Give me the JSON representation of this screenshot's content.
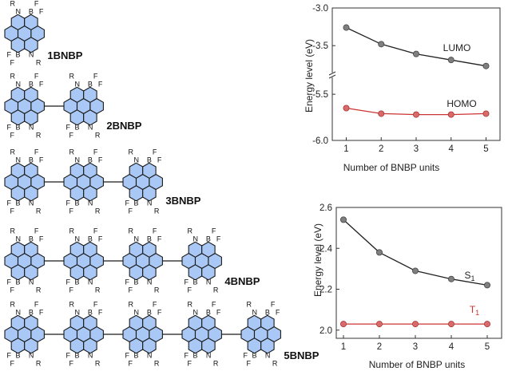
{
  "molecules": [
    {
      "label": "1BNBP",
      "units": 1
    },
    {
      "label": "2BNBP",
      "units": 2
    },
    {
      "label": "3BNBP",
      "units": 3
    },
    {
      "label": "4BNBP",
      "units": 4
    },
    {
      "label": "5BNBP",
      "units": 5
    }
  ],
  "atom_labels": {
    "nitrogen": "N",
    "boron": "B",
    "fluorine": "F",
    "substituent": "R"
  },
  "colors": {
    "ring_fill": "#a9c8f5",
    "bond": "#1a1a1a",
    "homo_line": "#cc3333",
    "homo_marker": "#d86a6a",
    "gray_marker": "#7f7f7f",
    "t1_line": "#cc3333"
  },
  "chart_data": [
    {
      "type": "line",
      "xlabel": "Number of BNBP units",
      "ylabel": "Energy level (eV)",
      "x": [
        1,
        2,
        3,
        4,
        5
      ],
      "xticks": [
        "1",
        "2",
        "3",
        "4",
        "5"
      ],
      "broken_axis": true,
      "upper_panel": {
        "ylim": [
          -3.9,
          -3.0
        ],
        "yticks": [
          "-3.0",
          "-3.5"
        ],
        "ytick_values": [
          -3.0,
          -3.5
        ]
      },
      "lower_panel": {
        "ylim": [
          -6.0,
          -5.3
        ],
        "yticks": [
          "-5.5",
          "-6.0"
        ],
        "ytick_values": [
          -5.5,
          -6.0
        ]
      },
      "series": [
        {
          "name": "LUMO",
          "values": [
            -3.26,
            -3.48,
            -3.61,
            -3.69,
            -3.77
          ],
          "panel": "upper",
          "color": "#333333"
        },
        {
          "name": "HOMO",
          "values": [
            -5.65,
            -5.71,
            -5.72,
            -5.72,
            -5.71
          ],
          "panel": "lower",
          "color": "#cc3333"
        }
      ],
      "grid": false
    },
    {
      "type": "line",
      "xlabel": "Number of BNBP units",
      "ylabel": "Energy level (eV)",
      "x": [
        1,
        2,
        3,
        4,
        5
      ],
      "xticks": [
        "1",
        "2",
        "3",
        "4",
        "5"
      ],
      "ylim": [
        1.96,
        2.6
      ],
      "yticks": [
        "2.0",
        "2.2",
        "2.4",
        "2.6"
      ],
      "ytick_values": [
        2.0,
        2.2,
        2.4,
        2.6
      ],
      "series": [
        {
          "name": "S",
          "subscript": "1",
          "values": [
            2.54,
            2.38,
            2.29,
            2.25,
            2.22
          ],
          "color": "#333333"
        },
        {
          "name": "T",
          "subscript": "1",
          "values": [
            2.03,
            2.03,
            2.03,
            2.03,
            2.03
          ],
          "color": "#cc3333"
        }
      ],
      "grid": false
    }
  ]
}
